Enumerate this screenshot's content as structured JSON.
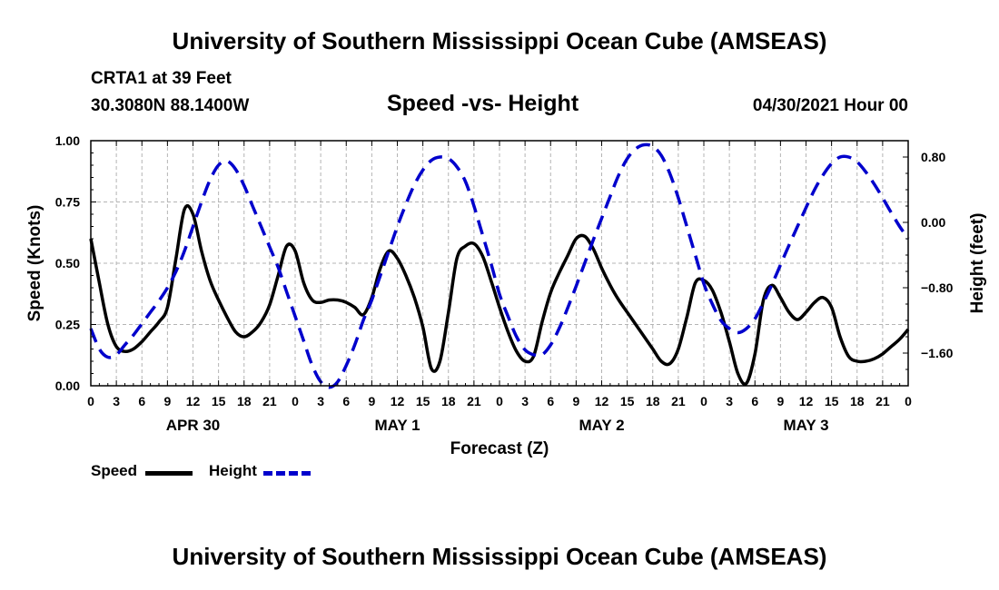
{
  "page": {
    "top_title": "University of Southern Mississippi Ocean Cube (AMSEAS)",
    "bottom_title": "University of Southern Mississippi Ocean Cube (AMSEAS)",
    "station": "CRTA1 at 39 Feet",
    "location": "30.3080N  88.1400W",
    "chart_title": "Speed -vs- Height",
    "datetime": "04/30/2021 Hour 00"
  },
  "legend": {
    "speed_label": "Speed",
    "height_label": "Height",
    "speed_color": "#000000",
    "height_color": "#0000cc"
  },
  "chart_data": {
    "type": "line",
    "title": "Speed -vs- Height",
    "xlabel": "Forecast (Z)",
    "ylabel": "Speed (Knots)",
    "y2label": "Height (feet)",
    "xlim": [
      0,
      96
    ],
    "ylim": [
      0,
      1.0
    ],
    "y2lim": [
      -2.0,
      1.0
    ],
    "grid": true,
    "x_ticks": [
      0,
      3,
      6,
      9,
      12,
      15,
      18,
      21,
      24,
      27,
      30,
      33,
      36,
      39,
      42,
      45,
      48,
      51,
      54,
      57,
      60,
      63,
      66,
      69,
      72,
      75,
      78,
      81,
      84,
      87,
      90,
      93,
      96
    ],
    "x_tick_labels": [
      "0",
      "3",
      "6",
      "9",
      "12",
      "15",
      "18",
      "21",
      "0",
      "3",
      "6",
      "9",
      "12",
      "15",
      "18",
      "21",
      "0",
      "3",
      "6",
      "9",
      "12",
      "15",
      "18",
      "21",
      "0",
      "3",
      "6",
      "9",
      "12",
      "15",
      "18",
      "21",
      "0"
    ],
    "day_labels": [
      {
        "x": 12,
        "label": "APR 30"
      },
      {
        "x": 36,
        "label": "MAY 1"
      },
      {
        "x": 60,
        "label": "MAY 2"
      },
      {
        "x": 84,
        "label": "MAY 3"
      }
    ],
    "y_ticks": [
      0,
      0.25,
      0.5,
      0.75,
      1.0
    ],
    "y_tick_labels": [
      "0.00",
      "0.25",
      "0.50",
      "0.75",
      "1.00"
    ],
    "y2_ticks": [
      0.8,
      0.0,
      -0.8,
      -1.6
    ],
    "y2_tick_labels": [
      "0.80",
      "0.00",
      "−0.80",
      "−1.60"
    ],
    "series": [
      {
        "name": "Speed",
        "axis": "left",
        "style": "solid",
        "x": [
          0,
          1,
          2,
          3,
          4,
          5,
          6,
          7,
          8,
          9,
          10,
          11,
          12,
          13,
          14,
          15,
          16,
          17,
          18,
          19,
          20,
          21,
          22,
          23,
          24,
          25,
          26,
          27,
          28,
          29,
          30,
          31,
          32,
          33,
          34,
          35,
          36,
          37,
          38,
          39,
          40,
          41,
          42,
          43,
          44,
          45,
          46,
          47,
          48,
          49,
          50,
          51,
          52,
          53,
          54,
          55,
          56,
          57,
          58,
          59,
          60,
          61,
          62,
          63,
          64,
          65,
          66,
          67,
          68,
          69,
          70,
          71,
          72,
          73,
          74,
          75,
          76,
          77,
          78,
          79,
          80,
          81,
          82,
          83,
          84,
          85,
          86,
          87,
          88,
          89,
          90,
          91,
          92,
          93,
          94,
          95,
          96
        ],
        "values": [
          0.6,
          0.42,
          0.25,
          0.16,
          0.14,
          0.15,
          0.18,
          0.22,
          0.26,
          0.32,
          0.52,
          0.72,
          0.7,
          0.55,
          0.43,
          0.35,
          0.28,
          0.22,
          0.2,
          0.22,
          0.26,
          0.33,
          0.45,
          0.57,
          0.55,
          0.42,
          0.35,
          0.34,
          0.35,
          0.35,
          0.34,
          0.32,
          0.29,
          0.36,
          0.48,
          0.55,
          0.52,
          0.45,
          0.36,
          0.24,
          0.07,
          0.1,
          0.3,
          0.52,
          0.57,
          0.58,
          0.53,
          0.43,
          0.32,
          0.22,
          0.14,
          0.1,
          0.12,
          0.26,
          0.38,
          0.46,
          0.53,
          0.6,
          0.61,
          0.56,
          0.48,
          0.41,
          0.35,
          0.3,
          0.25,
          0.2,
          0.15,
          0.1,
          0.09,
          0.15,
          0.28,
          0.42,
          0.43,
          0.39,
          0.3,
          0.18,
          0.05,
          0.01,
          0.13,
          0.35,
          0.41,
          0.36,
          0.3,
          0.27,
          0.3,
          0.34,
          0.36,
          0.32,
          0.2,
          0.12,
          0.1,
          0.1,
          0.11,
          0.13,
          0.16,
          0.19,
          0.23
        ]
      },
      {
        "name": "Height",
        "axis": "right",
        "style": "dashed",
        "x": [
          0,
          1,
          2,
          3,
          4,
          5,
          6,
          7,
          8,
          9,
          10,
          11,
          12,
          13,
          14,
          15,
          16,
          17,
          18,
          19,
          20,
          21,
          22,
          23,
          24,
          25,
          26,
          27,
          28,
          29,
          30,
          31,
          32,
          33,
          34,
          35,
          36,
          37,
          38,
          39,
          40,
          41,
          42,
          43,
          44,
          45,
          46,
          47,
          48,
          49,
          50,
          51,
          52,
          53,
          54,
          55,
          56,
          57,
          58,
          59,
          60,
          61,
          62,
          63,
          64,
          65,
          66,
          67,
          68,
          69,
          70,
          71,
          72,
          73,
          74,
          75,
          76,
          77,
          78,
          79,
          80,
          81,
          82,
          83,
          84,
          85,
          86,
          87,
          88,
          89,
          90,
          91,
          92,
          93,
          94,
          95,
          96
        ],
        "values": [
          -1.3,
          -1.55,
          -1.65,
          -1.62,
          -1.5,
          -1.38,
          -1.24,
          -1.1,
          -0.96,
          -0.8,
          -0.6,
          -0.35,
          -0.05,
          0.25,
          0.52,
          0.7,
          0.75,
          0.65,
          0.45,
          0.2,
          -0.05,
          -0.3,
          -0.55,
          -0.85,
          -1.15,
          -1.45,
          -1.75,
          -1.95,
          -2.02,
          -1.95,
          -1.75,
          -1.5,
          -1.2,
          -0.95,
          -0.65,
          -0.35,
          -0.05,
          0.22,
          0.46,
          0.64,
          0.76,
          0.8,
          0.78,
          0.68,
          0.5,
          0.2,
          -0.15,
          -0.5,
          -0.88,
          -1.15,
          -1.4,
          -1.56,
          -1.62,
          -1.62,
          -1.5,
          -1.3,
          -1.05,
          -0.78,
          -0.5,
          -0.22,
          0.05,
          0.32,
          0.58,
          0.78,
          0.9,
          0.95,
          0.93,
          0.82,
          0.6,
          0.3,
          -0.05,
          -0.4,
          -0.75,
          -1.0,
          -1.2,
          -1.3,
          -1.35,
          -1.3,
          -1.18,
          -0.98,
          -0.76,
          -0.52,
          -0.28,
          -0.05,
          0.18,
          0.4,
          0.58,
          0.72,
          0.8,
          0.8,
          0.74,
          0.62,
          0.47,
          0.3,
          0.12,
          -0.05,
          -0.2
        ]
      }
    ]
  }
}
